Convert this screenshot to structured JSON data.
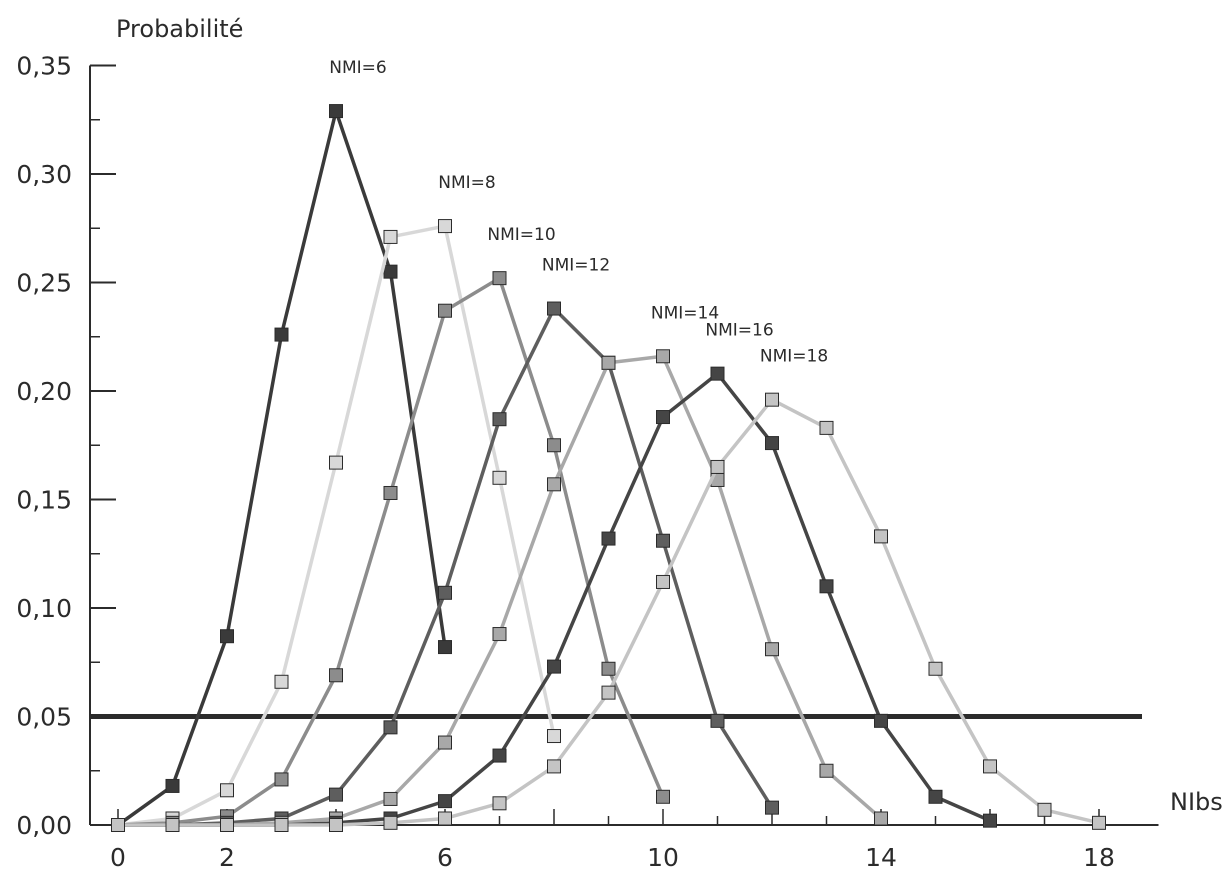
{
  "chart_data": {
    "type": "line",
    "ylabel": "Probabilité",
    "xlabel": "NIbs",
    "xlim": [
      0,
      19
    ],
    "ylim": [
      0,
      0.35
    ],
    "x_tick_labels": [
      {
        "value": 0,
        "label": "0"
      },
      {
        "value": 2,
        "label": "2"
      },
      {
        "value": 6,
        "label": "6"
      },
      {
        "value": 10,
        "label": "10"
      },
      {
        "value": 14,
        "label": "14"
      },
      {
        "value": 18,
        "label": "18"
      }
    ],
    "y_tick_labels": [
      {
        "value": 0.0,
        "label": "0,00"
      },
      {
        "value": 0.05,
        "label": "0,05"
      },
      {
        "value": 0.1,
        "label": "0,10"
      },
      {
        "value": 0.15,
        "label": "0,15"
      },
      {
        "value": 0.2,
        "label": "0,20"
      },
      {
        "value": 0.25,
        "label": "0,25"
      },
      {
        "value": 0.3,
        "label": "0,30"
      },
      {
        "value": 0.35,
        "label": "0,35"
      }
    ],
    "threshold": 0.05,
    "grid": false,
    "series": [
      {
        "name": "NMI=6",
        "color": "#3a3a3a",
        "x": [
          0,
          1,
          2,
          3,
          4,
          5,
          6
        ],
        "y": [
          0.0,
          0.018,
          0.087,
          0.226,
          0.329,
          0.255,
          0.082
        ]
      },
      {
        "name": "NMI=8",
        "color": "#d8d8d8",
        "x": [
          0,
          1,
          2,
          3,
          4,
          5,
          6,
          7,
          8
        ],
        "y": [
          0.0,
          0.003,
          0.016,
          0.066,
          0.167,
          0.271,
          0.276,
          0.16,
          0.041
        ]
      },
      {
        "name": "NMI=10",
        "color": "#8c8c8c",
        "x": [
          0,
          1,
          2,
          3,
          4,
          5,
          6,
          7,
          8,
          9,
          10
        ],
        "y": [
          0.0,
          0.001,
          0.004,
          0.021,
          0.069,
          0.153,
          0.237,
          0.252,
          0.175,
          0.072,
          0.013
        ]
      },
      {
        "name": "NMI=12",
        "color": "#5e5e5e",
        "x": [
          0,
          1,
          2,
          3,
          4,
          5,
          6,
          7,
          8,
          9,
          10,
          11,
          12
        ],
        "y": [
          0.0,
          0.0,
          0.001,
          0.003,
          0.014,
          0.045,
          0.107,
          0.187,
          0.238,
          0.213,
          0.131,
          0.048,
          0.008
        ]
      },
      {
        "name": "NMI=14",
        "color": "#a8a8a8",
        "x": [
          0,
          1,
          2,
          3,
          4,
          5,
          6,
          7,
          8,
          9,
          10,
          11,
          12,
          13,
          14
        ],
        "y": [
          0.0,
          0.0,
          0.0,
          0.001,
          0.003,
          0.012,
          0.038,
          0.088,
          0.157,
          0.213,
          0.216,
          0.159,
          0.081,
          0.025,
          0.003
        ]
      },
      {
        "name": "NMI=16",
        "color": "#454545",
        "x": [
          0,
          1,
          2,
          3,
          4,
          5,
          6,
          7,
          8,
          9,
          10,
          11,
          12,
          13,
          14,
          15,
          16
        ],
        "y": [
          0.0,
          0.0,
          0.0,
          0.0,
          0.001,
          0.003,
          0.011,
          0.032,
          0.073,
          0.132,
          0.188,
          0.208,
          0.176,
          0.11,
          0.048,
          0.013,
          0.002
        ]
      },
      {
        "name": "NMI=18",
        "color": "#c4c4c4",
        "x": [
          0,
          1,
          2,
          3,
          4,
          5,
          6,
          7,
          8,
          9,
          10,
          11,
          12,
          13,
          14,
          15,
          16,
          17,
          18
        ],
        "y": [
          0.0,
          0.0,
          0.0,
          0.0,
          0.0,
          0.001,
          0.003,
          0.01,
          0.027,
          0.061,
          0.112,
          0.165,
          0.196,
          0.183,
          0.133,
          0.072,
          0.027,
          0.007,
          0.001
        ]
      }
    ]
  }
}
